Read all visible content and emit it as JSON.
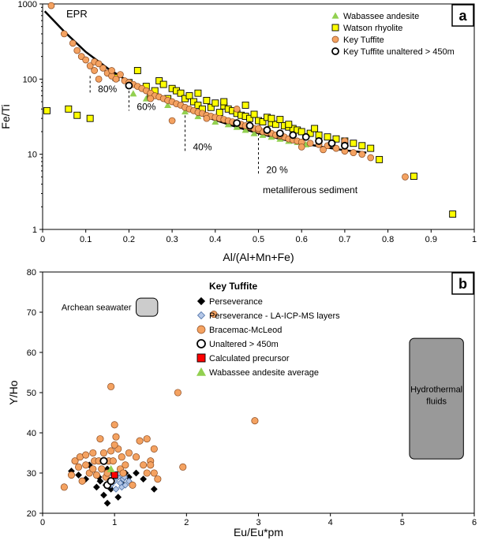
{
  "chart_data": [
    {
      "type": "scatter",
      "panel_label": "a",
      "xlabel": "Al/(Al+Mn+Fe)",
      "ylabel": "Fe/Ti",
      "xlim": [
        0,
        1
      ],
      "ylim": [
        1,
        1000
      ],
      "y_scale": "log",
      "x_ticks": [
        "0",
        "0.1",
        "0.2",
        "0.3",
        "0.4",
        "0.5",
        "0.6",
        "0.7",
        "0.8",
        "0.9",
        "1"
      ],
      "y_ticks": [
        "1",
        "10",
        "100",
        "1000"
      ],
      "legend_position": "top-right",
      "curve": {
        "label": "EPR",
        "x": [
          0.005,
          0.05,
          0.1,
          0.15,
          0.2,
          0.25,
          0.3,
          0.35,
          0.4,
          0.45,
          0.5,
          0.55,
          0.6,
          0.65,
          0.7,
          0.75
        ],
        "y": [
          800,
          430,
          230,
          140,
          92,
          66,
          48,
          36,
          28.5,
          23,
          19,
          16,
          14,
          12.5,
          11.3,
          10.5
        ]
      },
      "mixing_marks": [
        {
          "label": "80%",
          "x": 0.11,
          "y_top": 110,
          "y_bottom": 65
        },
        {
          "label": "60%",
          "x": 0.2,
          "y_top": 70,
          "y_bottom": 38
        },
        {
          "label": "40%",
          "x": 0.33,
          "y_top": 38,
          "y_bottom": 11
        },
        {
          "label": "20 %",
          "x": 0.5,
          "y_top": 19,
          "y_bottom": 5.5
        }
      ],
      "annotation": "metalliferous sediment",
      "series": [
        {
          "name": "Wabassee andesite",
          "marker": "triangle",
          "color": "#92D050",
          "x": [
            0.21,
            0.24,
            0.29,
            0.33,
            0.36,
            0.4,
            0.43,
            0.45,
            0.47,
            0.49,
            0.51,
            0.53,
            0.55,
            0.57,
            0.59,
            0.61
          ],
          "y": [
            64,
            55,
            45,
            37,
            32,
            27,
            25,
            23,
            21,
            19,
            18,
            17,
            16,
            15,
            14.5,
            13.5
          ]
        },
        {
          "name": "Watson rhyolite",
          "marker": "square",
          "color": "#FFFF00",
          "x": [
            0.01,
            0.06,
            0.08,
            0.11,
            0.17,
            0.2,
            0.22,
            0.24,
            0.26,
            0.27,
            0.28,
            0.3,
            0.31,
            0.32,
            0.33,
            0.34,
            0.35,
            0.36,
            0.37,
            0.38,
            0.39,
            0.4,
            0.41,
            0.42,
            0.43,
            0.44,
            0.45,
            0.46,
            0.47,
            0.48,
            0.49,
            0.5,
            0.51,
            0.52,
            0.53,
            0.54,
            0.55,
            0.56,
            0.57,
            0.58,
            0.59,
            0.6,
            0.62,
            0.64,
            0.66,
            0.68,
            0.7,
            0.72,
            0.74,
            0.76,
            0.78,
            0.86,
            0.95,
            0.25,
            0.29,
            0.36,
            0.42,
            0.47,
            0.53,
            0.57,
            0.63
          ],
          "y": [
            38,
            40,
            33,
            30,
            105,
            90,
            130,
            80,
            70,
            95,
            85,
            75,
            70,
            65,
            55,
            60,
            50,
            45,
            40,
            52,
            42,
            48,
            36,
            44,
            40,
            38,
            35,
            33,
            32,
            30,
            34,
            28,
            27,
            31,
            26,
            25,
            29,
            24,
            23,
            22,
            21,
            20,
            19,
            18,
            17,
            16,
            15,
            14,
            13,
            12,
            8.5,
            5.1,
            1.6,
            60,
            55,
            65,
            50,
            45,
            30,
            25,
            22
          ]
        },
        {
          "name": "Key Tuffite",
          "marker": "circle",
          "color": "#F4A261",
          "x": [
            0.02,
            0.05,
            0.07,
            0.08,
            0.09,
            0.1,
            0.11,
            0.12,
            0.12,
            0.13,
            0.14,
            0.15,
            0.16,
            0.17,
            0.18,
            0.19,
            0.2,
            0.21,
            0.22,
            0.23,
            0.24,
            0.25,
            0.26,
            0.27,
            0.28,
            0.29,
            0.3,
            0.31,
            0.32,
            0.33,
            0.34,
            0.35,
            0.36,
            0.37,
            0.38,
            0.39,
            0.4,
            0.41,
            0.42,
            0.43,
            0.44,
            0.45,
            0.46,
            0.47,
            0.48,
            0.49,
            0.5,
            0.51,
            0.52,
            0.53,
            0.54,
            0.55,
            0.56,
            0.57,
            0.58,
            0.59,
            0.6,
            0.62,
            0.64,
            0.66,
            0.68,
            0.7,
            0.72,
            0.74,
            0.76,
            0.84,
            0.13,
            0.16,
            0.25,
            0.3,
            0.38,
            0.45,
            0.5,
            0.55,
            0.6,
            0.65,
            0.7
          ],
          "y": [
            950,
            400,
            300,
            240,
            200,
            180,
            150,
            170,
            130,
            160,
            140,
            120,
            110,
            100,
            115,
            95,
            90,
            85,
            80,
            75,
            70,
            65,
            60,
            58,
            55,
            52,
            50,
            47,
            45,
            42,
            40,
            38,
            36,
            35,
            33,
            32,
            31,
            30,
            29,
            28,
            27,
            26,
            25,
            24,
            23,
            22,
            21,
            20,
            19.5,
            19,
            18,
            17.5,
            17,
            16,
            15.5,
            15,
            14.5,
            14,
            13.5,
            13,
            12,
            11,
            10.5,
            10,
            9,
            5,
            100,
            130,
            55,
            28,
            30,
            40,
            22,
            18,
            12.5,
            11.5,
            15
          ]
        },
        {
          "name": "Key Tuffite unaltered > 450m",
          "marker": "open-circle",
          "color": "#FFFFFF",
          "x": [
            0.2,
            0.45,
            0.48,
            0.52,
            0.55,
            0.58,
            0.61,
            0.64,
            0.67,
            0.7
          ],
          "y": [
            82,
            26,
            24,
            21,
            19,
            18,
            17,
            15,
            14,
            13
          ]
        }
      ]
    },
    {
      "type": "scatter",
      "panel_label": "b",
      "xlabel": "Eu/Eu*pm",
      "ylabel": "Y/Ho",
      "xlim": [
        0,
        6
      ],
      "ylim": [
        20,
        80
      ],
      "x_ticks": [
        "0",
        "1",
        "2",
        "3",
        "4",
        "5",
        "6"
      ],
      "y_ticks": [
        "20",
        "30",
        "40",
        "50",
        "60",
        "70",
        "80"
      ],
      "legend_title": "Key Tuffite",
      "legend_position": "top-center",
      "regions": [
        {
          "label": "Archean seawater",
          "x": [
            1.3,
            1.6
          ],
          "y": [
            69,
            73.5
          ],
          "color": "#CCCCCC"
        },
        {
          "label": "Hydrothermal fluids",
          "x": [
            5.1,
            5.85
          ],
          "y": [
            33.5,
            63.5
          ],
          "color": "#999999"
        }
      ],
      "series": [
        {
          "name": "Perseverance",
          "marker": "diamond",
          "color": "#000000",
          "x": [
            0.4,
            0.5,
            0.6,
            0.7,
            0.75,
            0.8,
            0.85,
            0.88,
            0.9,
            0.92,
            0.95,
            1.0,
            1.05,
            1.1,
            1.2,
            1.3,
            1.4,
            1.55,
            0.65,
            0.78,
            0.9,
            1.15
          ],
          "y": [
            30.5,
            29.5,
            28.5,
            31,
            26.5,
            28,
            24.5,
            27,
            22.5,
            30,
            26,
            29,
            24,
            27.5,
            29,
            30,
            28.5,
            26,
            32,
            29,
            31,
            30
          ]
        },
        {
          "name": "Perseverance - LA-ICP-MS layers",
          "marker": "diamond",
          "color": "#B4C7E7",
          "x": [
            0.95,
            1.0,
            1.02,
            1.05,
            1.08,
            1.1,
            1.12,
            1.15,
            1.2,
            0.98,
            1.06,
            1.14
          ],
          "y": [
            27,
            28,
            26,
            29,
            27.5,
            26.5,
            28.5,
            27,
            28,
            29.5,
            30,
            29
          ]
        },
        {
          "name": "Bracemac-McLeod",
          "marker": "circle",
          "color": "#F4A261",
          "x": [
            0.3,
            0.4,
            0.45,
            0.5,
            0.52,
            0.55,
            0.6,
            0.65,
            0.7,
            0.72,
            0.75,
            0.78,
            0.8,
            0.82,
            0.85,
            0.88,
            0.9,
            0.92,
            0.95,
            0.98,
            1.0,
            1.02,
            1.05,
            1.08,
            1.1,
            1.12,
            1.15,
            1.2,
            1.25,
            1.3,
            1.35,
            1.4,
            1.45,
            1.5,
            1.55,
            1.6,
            1.88,
            1.95,
            2.38,
            2.95,
            0.95,
            1.0,
            1.55,
            0.6,
            0.7,
            1.45,
            1.5
          ],
          "y": [
            26.5,
            29.5,
            33,
            31.5,
            34,
            28,
            32,
            30,
            35,
            33,
            29.5,
            33,
            38.5,
            31,
            35,
            29,
            30,
            33,
            51.5,
            33,
            42,
            39,
            36,
            31,
            34,
            30,
            32,
            35,
            27,
            34,
            38,
            32,
            30,
            33,
            30,
            28.5,
            50,
            31.5,
            69.5,
            43,
            35.5,
            37,
            36,
            34.5,
            31,
            38.5,
            32
          ]
        },
        {
          "name": "Unaltered > 450m",
          "marker": "open-circle",
          "color": "#FFFFFF",
          "x": [
            0.85,
            0.9,
            0.95
          ],
          "y": [
            33,
            27,
            28
          ]
        },
        {
          "name": "Calculated precursor",
          "marker": "square",
          "color": "#FF0000",
          "x": [
            1.0
          ],
          "y": [
            29.5
          ]
        },
        {
          "name": "Wabassee andesite average",
          "marker": "triangle",
          "color": "#92D050",
          "x": [
            0.95
          ],
          "y": [
            31
          ]
        }
      ]
    }
  ]
}
